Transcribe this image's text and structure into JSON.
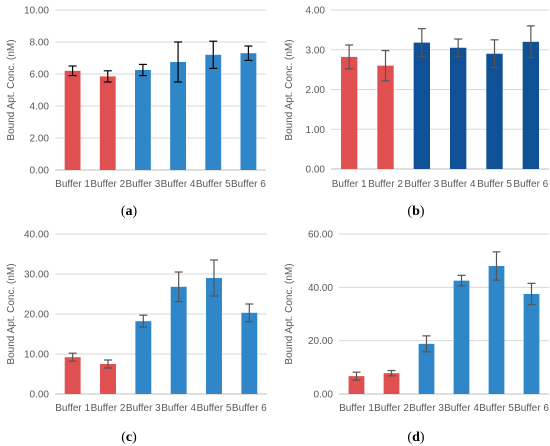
{
  "chart_data": [
    {
      "type": "bar",
      "panel": "a",
      "ylabel": "Bound Apt. Conc. (nM)",
      "ylim": [
        0,
        10
      ],
      "yticks": [
        "0.00",
        "2.00",
        "4.00",
        "6.00",
        "8.00",
        "10.00"
      ],
      "categories": [
        "Buffer 1",
        "Buffer 2",
        "Buffer 3",
        "Buffer 4",
        "Buffer 5",
        "Buffer 6"
      ],
      "values": [
        6.2,
        5.85,
        6.25,
        6.75,
        7.2,
        7.3
      ],
      "errors": [
        0.3,
        0.35,
        0.35,
        1.25,
        0.85,
        0.45
      ],
      "colors": [
        "#e05050",
        "#e05050",
        "#2f86c8",
        "#2f86c8",
        "#2f86c8",
        "#2f86c8"
      ],
      "error_color": "#000000",
      "grid": true
    },
    {
      "type": "bar",
      "panel": "b",
      "ylabel": "Bound Apt. Conc. (nM)",
      "ylim": [
        0,
        4
      ],
      "yticks": [
        "0.00",
        "1.00",
        "2.00",
        "3.00",
        "4.00"
      ],
      "categories": [
        "Buffer 1",
        "Buffer 2",
        "Buffer 3",
        "Buffer 4",
        "Buffer 5",
        "Buffer 6"
      ],
      "values": [
        2.82,
        2.6,
        3.18,
        3.05,
        2.9,
        3.2
      ],
      "errors": [
        0.3,
        0.38,
        0.35,
        0.22,
        0.35,
        0.4
      ],
      "colors": [
        "#e05050",
        "#e05050",
        "#0f5096",
        "#0f5096",
        "#0f5096",
        "#0f5096"
      ],
      "error_color": "#555555",
      "grid": true
    },
    {
      "type": "bar",
      "panel": "c",
      "ylabel": "Bound Apt. Conc. (nM)",
      "ylim": [
        0,
        40
      ],
      "yticks": [
        "0.00",
        "10.00",
        "20.00",
        "30.00",
        "40.00"
      ],
      "categories": [
        "Buffer 1",
        "Buffer 2",
        "Buffer 3",
        "Buffer 4",
        "Buffer 5",
        "Buffer 6"
      ],
      "values": [
        9.2,
        7.5,
        18.2,
        26.8,
        29.0,
        20.3
      ],
      "errors": [
        1.0,
        1.0,
        1.5,
        3.7,
        4.5,
        2.2
      ],
      "colors": [
        "#e05050",
        "#e05050",
        "#2f86c8",
        "#2f86c8",
        "#2f86c8",
        "#2f86c8"
      ],
      "error_color": "#555555",
      "grid": true
    },
    {
      "type": "bar",
      "panel": "d",
      "ylabel": "Bound Apt. Conc. (nM)",
      "ylim": [
        0,
        60
      ],
      "yticks": [
        "0.00",
        "20.00",
        "40.00",
        "60.00"
      ],
      "categories": [
        "Buffer 1",
        "Buffer 2",
        "Buffer 3",
        "Buffer 4",
        "Buffer 5",
        "Buffer 6"
      ],
      "values": [
        6.7,
        7.8,
        18.8,
        42.5,
        48.0,
        37.5
      ],
      "errors": [
        1.5,
        1.0,
        3.0,
        2.0,
        5.3,
        4.0
      ],
      "colors": [
        "#e05050",
        "#e05050",
        "#2f86c8",
        "#2f86c8",
        "#2f86c8",
        "#2f86c8"
      ],
      "error_color": "#555555",
      "grid": true
    }
  ],
  "captions": [
    "a",
    "b",
    "c",
    "d"
  ]
}
